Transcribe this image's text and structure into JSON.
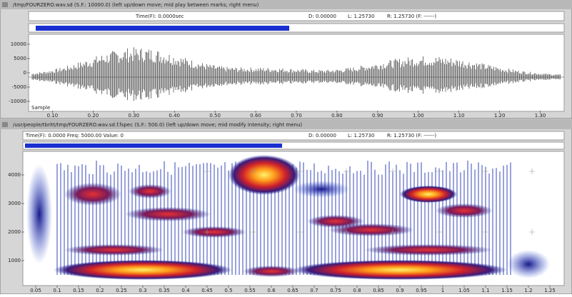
{
  "waveform_window": {
    "title": "/tmp/FOURZERO.wav.sd (S.F.: 10000.0) (left up/down move; mid play between marks; right menu)",
    "status": {
      "time": "Time(F): 0.0000sec",
      "d": "D: 0.00000",
      "l": "L: 1.25730",
      "r": "R: 1.25730 (F: ------)"
    },
    "y_ticks": [
      "10000",
      "5000",
      "0",
      "-5000",
      "-10000"
    ],
    "x_ticks": [
      "0.10",
      "0.20",
      "0.30",
      "0.40",
      "0.50",
      "0.60",
      "0.70",
      "0.80",
      "0.90",
      "1.00",
      "1.10",
      "1.20",
      "1.30"
    ],
    "corner_label": "Sample"
  },
  "spectrogram_window": {
    "title": "/usr/people/tbritt/tmp/FOURZERO.wav.sd.f.fspec (S.F.: 500.0) (left up/down move; mid modify intensity; right menu)",
    "status": {
      "time": "Time(F): 0.0000 Freq: 5000.00 Value: 0",
      "d": "D: 0.00000",
      "l": "L: 1.25730",
      "r": "R: 1.25730 (F: ------)"
    },
    "y_ticks": [
      "4000",
      "3000",
      "2000",
      "1000"
    ],
    "x_ticks": [
      "0.05",
      "0.1",
      "0.15",
      "0.2",
      "0.25",
      "0.3",
      "0.35",
      "0.4",
      "0.45",
      "0.5",
      "0.55",
      "0.6",
      "0.65",
      "0.7",
      "0.75",
      "0.8",
      "0.85",
      "0.9",
      "0.95",
      "1",
      "1.05",
      "1.1",
      "1.15",
      "1.2",
      "1.25"
    ]
  }
}
